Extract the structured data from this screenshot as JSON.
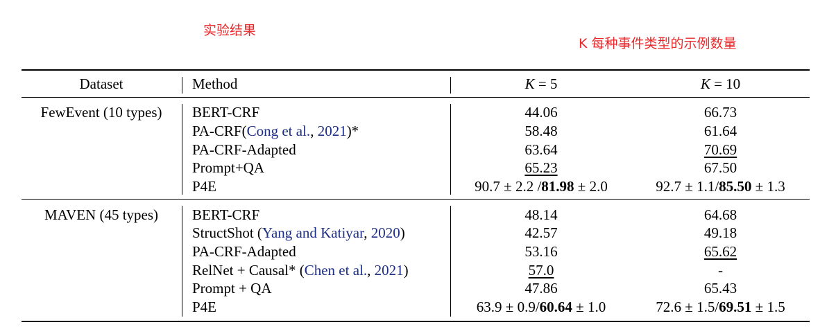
{
  "annotations": {
    "left": "实验结果",
    "right": "K 每种事件类型的示例数量"
  },
  "header": {
    "dataset": "Dataset",
    "method": "Method",
    "k5_var": "K",
    "k5_rest": " = 5",
    "k10_var": "K",
    "k10_rest": " = 10"
  },
  "groups": [
    {
      "dataset": "FewEvent (10 types)",
      "rows": [
        {
          "method": "BERT-CRF",
          "k5": "44.06",
          "k10": "66.73"
        },
        {
          "method_pre": "PA-CRF(",
          "cite_name": "Cong et al.",
          "cite_sep": ", ",
          "cite_year": "2021",
          "method_post": ")*",
          "k5": "58.48",
          "k10": "61.64"
        },
        {
          "method": "PA-CRF-Adapted",
          "k5": "63.64",
          "k10": "70.69"
        },
        {
          "method": "Prompt+QA",
          "k5": "65.23",
          "k10": "67.50"
        },
        {
          "method": "P4E",
          "k5_a": "90.7 ± 2.2 /",
          "k5_b": "81.98",
          "k5_c": " ± 2.0",
          "k10_a": "92.7 ± 1.1/",
          "k10_b": "85.50",
          "k10_c": " ± 1.3"
        }
      ]
    },
    {
      "dataset": "MAVEN (45 types)",
      "rows": [
        {
          "method": "BERT-CRF",
          "k5": "48.14",
          "k10": "64.68"
        },
        {
          "method_pre": "StructShot (",
          "cite_name": "Yang and Katiyar",
          "cite_sep": ", ",
          "cite_year": "2020",
          "method_post": ")",
          "k5": "42.57",
          "k10": "49.18"
        },
        {
          "method": "PA-CRF-Adapted",
          "k5": "53.16",
          "k10": "65.62"
        },
        {
          "method_pre": "RelNet + Causal* (",
          "cite_name": "Chen et al.",
          "cite_sep": ", ",
          "cite_year": "2021",
          "method_post": ")",
          "k5": "57.0",
          "k10": "-"
        },
        {
          "method": "Prompt + QA",
          "k5": "47.86",
          "k10": "65.43"
        },
        {
          "method": "P4E",
          "k5_a": "63.9 ± 0.9/",
          "k5_b": "60.64",
          "k5_c": " ± 1.0",
          "k10_a": "72.6 ± 1.5/",
          "k10_b": "69.51",
          "k10_c": " ± 1.5"
        }
      ]
    }
  ]
}
